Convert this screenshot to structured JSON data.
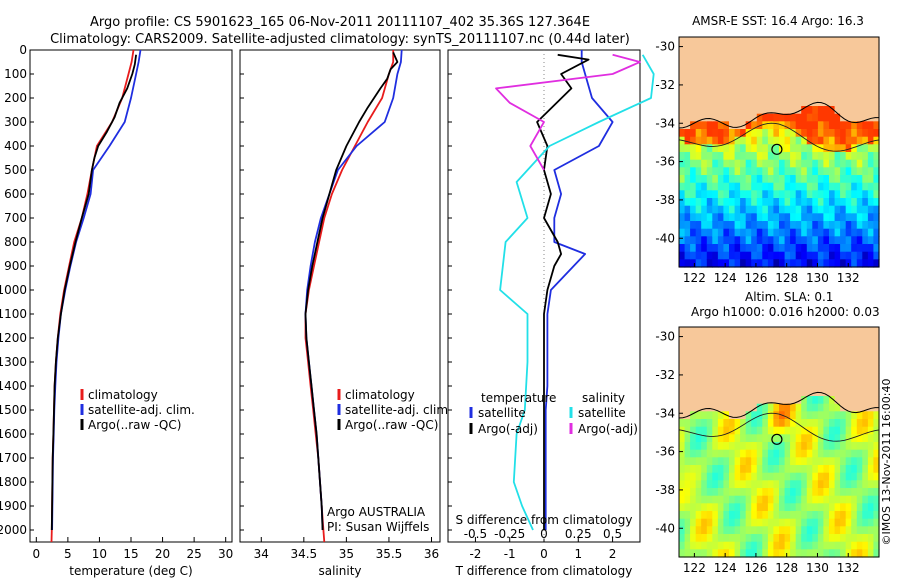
{
  "header": {
    "line1": "Argo profile: CS 5901623_165 06-Nov-2011 20111107_402 35.36S 127.364E",
    "line2": "Climatology: CARS2009. Satellite-adjusted climatology: synTS_20111107.nc (0.44d later)"
  },
  "colors": {
    "climatology": "#e81c1c",
    "satellite": "#1f2ee0",
    "argo": "#000000",
    "sal_satellite": "#22e0e8",
    "sal_argo": "#e02ee0",
    "land": "#f7c89a"
  },
  "chart_data": [
    {
      "type": "line",
      "panel": "temperature",
      "xlabel": "temperature (deg C)",
      "xlim": [
        -1,
        31
      ],
      "xticks": [
        "0",
        "5",
        "10",
        "15",
        "20",
        "25",
        "30"
      ],
      "xtick_values": [
        0,
        5,
        10,
        15,
        20,
        25,
        30
      ],
      "ylim": [
        2050,
        0
      ],
      "yticks": [
        "0",
        "100",
        "200",
        "300",
        "400",
        "500",
        "600",
        "700",
        "800",
        "900",
        "1000",
        "1100",
        "1200",
        "1300",
        "1400",
        "1500",
        "1600",
        "1700",
        "1800",
        "1900",
        "2000"
      ],
      "legend": [
        "climatology",
        "satellite-adj. clim.",
        "Argo(..raw -QC)"
      ],
      "series": [
        {
          "name": "climatology",
          "color": "#e81c1c",
          "points": [
            [
              15.4,
              0
            ],
            [
              15.1,
              50
            ],
            [
              14.6,
              100
            ],
            [
              13.6,
              200
            ],
            [
              12.0,
              300
            ],
            [
              9.6,
              400
            ],
            [
              8.8,
              500
            ],
            [
              8.1,
              600
            ],
            [
              7.2,
              700
            ],
            [
              6.0,
              800
            ],
            [
              5.2,
              900
            ],
            [
              4.4,
              1000
            ],
            [
              3.8,
              1100
            ],
            [
              3.4,
              1200
            ],
            [
              3.1,
              1300
            ],
            [
              2.9,
              1400
            ],
            [
              2.8,
              1500
            ],
            [
              2.7,
              1600
            ],
            [
              2.6,
              1700
            ],
            [
              2.55,
              1800
            ],
            [
              2.5,
              1900
            ],
            [
              2.45,
              2000
            ],
            [
              2.4,
              2050
            ]
          ]
        },
        {
          "name": "satellite-adj. clim.",
          "color": "#1f2ee0",
          "points": [
            [
              16.5,
              0
            ],
            [
              16.2,
              50
            ],
            [
              15.8,
              100
            ],
            [
              15.0,
              200
            ],
            [
              14.0,
              300
            ],
            [
              11.6,
              400
            ],
            [
              9.0,
              500
            ],
            [
              8.6,
              600
            ],
            [
              7.5,
              700
            ],
            [
              6.3,
              800
            ],
            [
              5.4,
              900
            ],
            [
              4.6,
              1000
            ],
            [
              3.9,
              1100
            ],
            [
              3.5,
              1200
            ],
            [
              3.2,
              1300
            ],
            [
              3.0,
              1400
            ],
            [
              2.85,
              1500
            ],
            [
              2.75,
              1600
            ],
            [
              2.65,
              1700
            ],
            [
              2.6,
              1800
            ],
            [
              2.55,
              1900
            ],
            [
              2.5,
              2000
            ]
          ]
        },
        {
          "name": "Argo(..raw -QC)",
          "color": "#000000",
          "points": [
            [
              15.8,
              20
            ],
            [
              15.6,
              60
            ],
            [
              15.2,
              100
            ],
            [
              14.4,
              160
            ],
            [
              13.2,
              220
            ],
            [
              12.4,
              280
            ],
            [
              11.2,
              340
            ],
            [
              9.8,
              400
            ],
            [
              9.2,
              450
            ],
            [
              8.8,
              500
            ],
            [
              8.3,
              600
            ],
            [
              7.2,
              700
            ],
            [
              6.2,
              800
            ],
            [
              5.3,
              900
            ],
            [
              4.5,
              1000
            ],
            [
              3.9,
              1100
            ],
            [
              3.4,
              1200
            ],
            [
              3.1,
              1300
            ],
            [
              2.9,
              1400
            ],
            [
              2.8,
              1500
            ],
            [
              2.7,
              1600
            ],
            [
              2.6,
              1700
            ],
            [
              2.55,
              1800
            ],
            [
              2.5,
              1900
            ],
            [
              2.45,
              2000
            ]
          ]
        }
      ]
    },
    {
      "type": "line",
      "panel": "salinity",
      "xlabel": "salinity",
      "xlim": [
        33.75,
        36.1
      ],
      "xticks": [
        "34",
        "34.5",
        "35",
        "35.5",
        "36"
      ],
      "xtick_values": [
        34,
        34.5,
        35,
        35.5,
        36
      ],
      "ylim": [
        2050,
        0
      ],
      "legend": [
        "climatology",
        "satellite-adj. clim.",
        "Argo(..raw -QC)"
      ],
      "annotation": [
        "Argo AUSTRALIA",
        "PI: Susan Wijffels"
      ],
      "series": [
        {
          "name": "climatology",
          "color": "#e81c1c",
          "points": [
            [
              35.55,
              0
            ],
            [
              35.55,
              50
            ],
            [
              35.5,
              100
            ],
            [
              35.42,
              200
            ],
            [
              35.25,
              300
            ],
            [
              35.1,
              400
            ],
            [
              34.95,
              500
            ],
            [
              34.83,
              600
            ],
            [
              34.74,
              700
            ],
            [
              34.68,
              800
            ],
            [
              34.62,
              900
            ],
            [
              34.56,
              1000
            ],
            [
              34.52,
              1100
            ],
            [
              34.52,
              1200
            ],
            [
              34.55,
              1300
            ],
            [
              34.58,
              1400
            ],
            [
              34.61,
              1500
            ],
            [
              34.64,
              1600
            ],
            [
              34.67,
              1700
            ],
            [
              34.69,
              1800
            ],
            [
              34.71,
              1900
            ],
            [
              34.73,
              2000
            ],
            [
              34.74,
              2050
            ]
          ]
        },
        {
          "name": "satellite-adj. clim.",
          "color": "#1f2ee0",
          "points": [
            [
              35.65,
              0
            ],
            [
              35.64,
              50
            ],
            [
              35.6,
              100
            ],
            [
              35.55,
              200
            ],
            [
              35.45,
              300
            ],
            [
              35.12,
              400
            ],
            [
              34.9,
              500
            ],
            [
              34.8,
              600
            ],
            [
              34.7,
              700
            ],
            [
              34.63,
              800
            ],
            [
              34.58,
              900
            ],
            [
              34.54,
              1000
            ],
            [
              34.52,
              1100
            ],
            [
              34.53,
              1200
            ],
            [
              34.56,
              1300
            ],
            [
              34.59,
              1400
            ],
            [
              34.62,
              1500
            ],
            [
              34.65,
              1600
            ],
            [
              34.67,
              1700
            ],
            [
              34.69,
              1800
            ],
            [
              34.71,
              1900
            ],
            [
              34.72,
              2000
            ]
          ]
        },
        {
          "name": "Argo(..raw -QC)",
          "color": "#000000",
          "points": [
            [
              35.55,
              10
            ],
            [
              35.6,
              50
            ],
            [
              35.52,
              80
            ],
            [
              35.48,
              120
            ],
            [
              35.4,
              160
            ],
            [
              35.25,
              240
            ],
            [
              35.15,
              300
            ],
            [
              35.0,
              400
            ],
            [
              34.88,
              500
            ],
            [
              34.8,
              600
            ],
            [
              34.72,
              700
            ],
            [
              34.66,
              800
            ],
            [
              34.6,
              900
            ],
            [
              34.55,
              1000
            ],
            [
              34.52,
              1100
            ],
            [
              34.53,
              1200
            ],
            [
              34.56,
              1300
            ],
            [
              34.59,
              1400
            ],
            [
              34.62,
              1500
            ],
            [
              34.65,
              1600
            ],
            [
              34.67,
              1700
            ],
            [
              34.69,
              1800
            ],
            [
              34.71,
              1900
            ],
            [
              34.72,
              2000
            ]
          ]
        }
      ]
    },
    {
      "type": "line",
      "panel": "difference",
      "xlabel_top": "S difference from climatology",
      "xlabel": "T difference from climatology",
      "xlim": [
        -2.8,
        2.8
      ],
      "xticks": [
        "-2",
        "-1",
        "0",
        "1",
        "2"
      ],
      "xtick_values": [
        -2,
        -1,
        0,
        1,
        2
      ],
      "sticks": [
        "-0.5",
        "-0.25",
        "0",
        "0.25",
        "0.5"
      ],
      "stick_values": [
        -0.5,
        -0.25,
        0,
        0.25,
        0.5
      ],
      "ylim": [
        2050,
        0
      ],
      "legend_groups": [
        {
          "title": "temperature",
          "items": [
            "satellite",
            "Argo(-adj)"
          ]
        },
        {
          "title": "salinity",
          "items": [
            "satellite",
            "Argo(-adj)"
          ]
        }
      ],
      "series": [
        {
          "name": "temperature satellite",
          "color": "#1f2ee0",
          "points": [
            [
              1.1,
              0
            ],
            [
              1.1,
              50
            ],
            [
              1.2,
              100
            ],
            [
              1.4,
              200
            ],
            [
              2.0,
              300
            ],
            [
              1.6,
              400
            ],
            [
              0.3,
              500
            ],
            [
              0.5,
              600
            ],
            [
              0.3,
              700
            ],
            [
              0.3,
              800
            ],
            [
              1.2,
              850
            ],
            [
              0.2,
              1000
            ],
            [
              0.1,
              1100
            ],
            [
              0.1,
              1200
            ],
            [
              0.1,
              1300
            ],
            [
              0.1,
              1400
            ],
            [
              0.05,
              1500
            ],
            [
              0.05,
              1600
            ],
            [
              0.05,
              1700
            ],
            [
              0.05,
              1800
            ],
            [
              0.05,
              1900
            ],
            [
              0.05,
              2000
            ]
          ]
        },
        {
          "name": "temperature Argo(-adj)",
          "color": "#000000",
          "points": [
            [
              0.4,
              20
            ],
            [
              1.3,
              40
            ],
            [
              0.5,
              100
            ],
            [
              0.8,
              160
            ],
            [
              -0.2,
              300
            ],
            [
              0.1,
              400
            ],
            [
              0.0,
              500
            ],
            [
              0.2,
              600
            ],
            [
              0.0,
              700
            ],
            [
              0.4,
              800
            ],
            [
              0.5,
              850
            ],
            [
              0.3,
              900
            ],
            [
              0.1,
              1000
            ],
            [
              0.0,
              1100
            ],
            [
              0.0,
              1200
            ],
            [
              0.0,
              1300
            ],
            [
              0.0,
              1400
            ],
            [
              0.0,
              1500
            ],
            [
              0.0,
              1600
            ],
            [
              0.0,
              1700
            ],
            [
              0.0,
              1800
            ],
            [
              0.0,
              1900
            ],
            [
              0.0,
              2000
            ]
          ]
        },
        {
          "name": "salinity satellite",
          "color": "#22e0e8",
          "points": [
            [
              0.72,
              20
            ],
            [
              0.8,
              100
            ],
            [
              0.78,
              200
            ],
            [
              0.4,
              300
            ],
            [
              0.04,
              400
            ],
            [
              -0.2,
              550
            ],
            [
              -0.12,
              700
            ],
            [
              -0.28,
              800
            ],
            [
              -0.32,
              1000
            ],
            [
              -0.12,
              1100
            ],
            [
              -0.12,
              1300
            ],
            [
              -0.14,
              1500
            ],
            [
              -0.2,
              1600
            ],
            [
              -0.22,
              1800
            ],
            [
              -0.16,
              1900
            ],
            [
              -0.08,
              2000
            ]
          ]
        },
        {
          "name": "salinity Argo(-adj)",
          "color": "#e02ee0",
          "points": [
            [
              0.5,
              20
            ],
            [
              0.7,
              50
            ],
            [
              0.5,
              100
            ],
            [
              -0.35,
              160
            ],
            [
              -0.25,
              220
            ],
            [
              0.0,
              300
            ],
            [
              -0.1,
              400
            ],
            [
              0.0,
              500
            ]
          ]
        }
      ]
    },
    {
      "type": "heatmap",
      "panel": "sst-map",
      "title": "AMSR-E SST: 16.4  Argo: 16.3",
      "xlim": [
        121,
        134
      ],
      "ylim": [
        -41.5,
        -29.5
      ],
      "xticks": [
        "122",
        "124",
        "126",
        "128",
        "130",
        "132"
      ],
      "xtick_values": [
        122,
        124,
        126,
        128,
        130,
        132
      ],
      "yticks": [
        "-30",
        "-32",
        "-34",
        "-36",
        "-38",
        "-40"
      ],
      "ytick_values": [
        -30,
        -32,
        -34,
        -36,
        -38,
        -40
      ],
      "argo_position": [
        127.364,
        -35.36
      ]
    },
    {
      "type": "heatmap",
      "panel": "sla-map",
      "title_lines": [
        "Altim. SLA: 0.1",
        "Argo h1000: 0.016 h2000: 0.03"
      ],
      "xlim": [
        121,
        134
      ],
      "ylim": [
        -41.5,
        -29.5
      ],
      "xticks": [
        "122",
        "124",
        "126",
        "128",
        "130",
        "132"
      ],
      "xtick_values": [
        122,
        124,
        126,
        128,
        130,
        132
      ],
      "yticks": [
        "-30",
        "-32",
        "-34",
        "-36",
        "-38",
        "-40"
      ],
      "ytick_values": [
        -30,
        -32,
        -34,
        -36,
        -38,
        -40
      ],
      "argo_position": [
        127.364,
        -35.36
      ]
    }
  ],
  "footer": {
    "credit": "©IMOS 13-Nov-2011 16:00:40"
  }
}
